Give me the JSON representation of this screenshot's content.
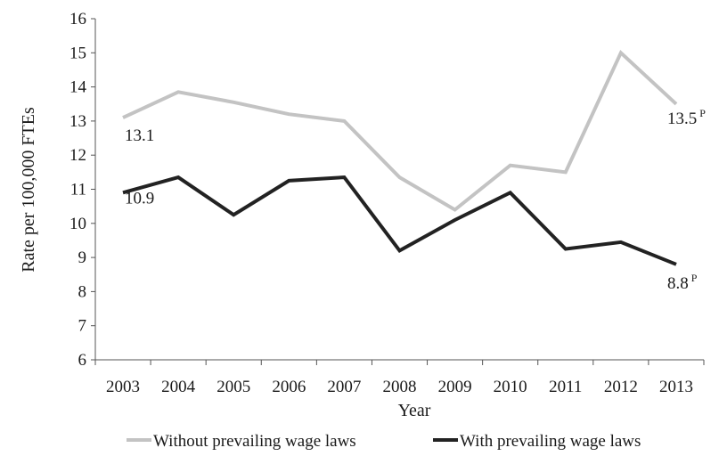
{
  "chart_data": {
    "type": "line",
    "xlabel": "Year",
    "ylabel": "Rate per 100,000 FTEs",
    "categories": [
      "2003",
      "2004",
      "2005",
      "2006",
      "2007",
      "2008",
      "2009",
      "2010",
      "2011",
      "2012",
      "2013"
    ],
    "ylim": [
      6,
      16
    ],
    "yticks": [
      "6",
      "7",
      "8",
      "9",
      "10",
      "11",
      "12",
      "13",
      "14",
      "15",
      "16"
    ],
    "grid": false,
    "legend_position": "bottom",
    "series": [
      {
        "name": "Without prevailing wage laws",
        "color": "#c3c3c3",
        "values": [
          13.1,
          13.85,
          13.55,
          13.2,
          13.0,
          11.35,
          10.4,
          11.7,
          11.5,
          15.0,
          13.5
        ]
      },
      {
        "name": "With prevailing wage laws",
        "color": "#222222",
        "values": [
          10.9,
          11.35,
          10.25,
          11.25,
          11.35,
          9.2,
          10.1,
          10.9,
          9.25,
          9.45,
          8.8
        ]
      }
    ],
    "annotations": [
      {
        "series": 0,
        "index": 0,
        "text": "13.1",
        "superscript": ""
      },
      {
        "series": 0,
        "index": 10,
        "text": "13.5",
        "superscript": "P"
      },
      {
        "series": 1,
        "index": 0,
        "text": "10.9",
        "superscript": ""
      },
      {
        "series": 1,
        "index": 10,
        "text": "8.8",
        "superscript": "P"
      }
    ]
  }
}
